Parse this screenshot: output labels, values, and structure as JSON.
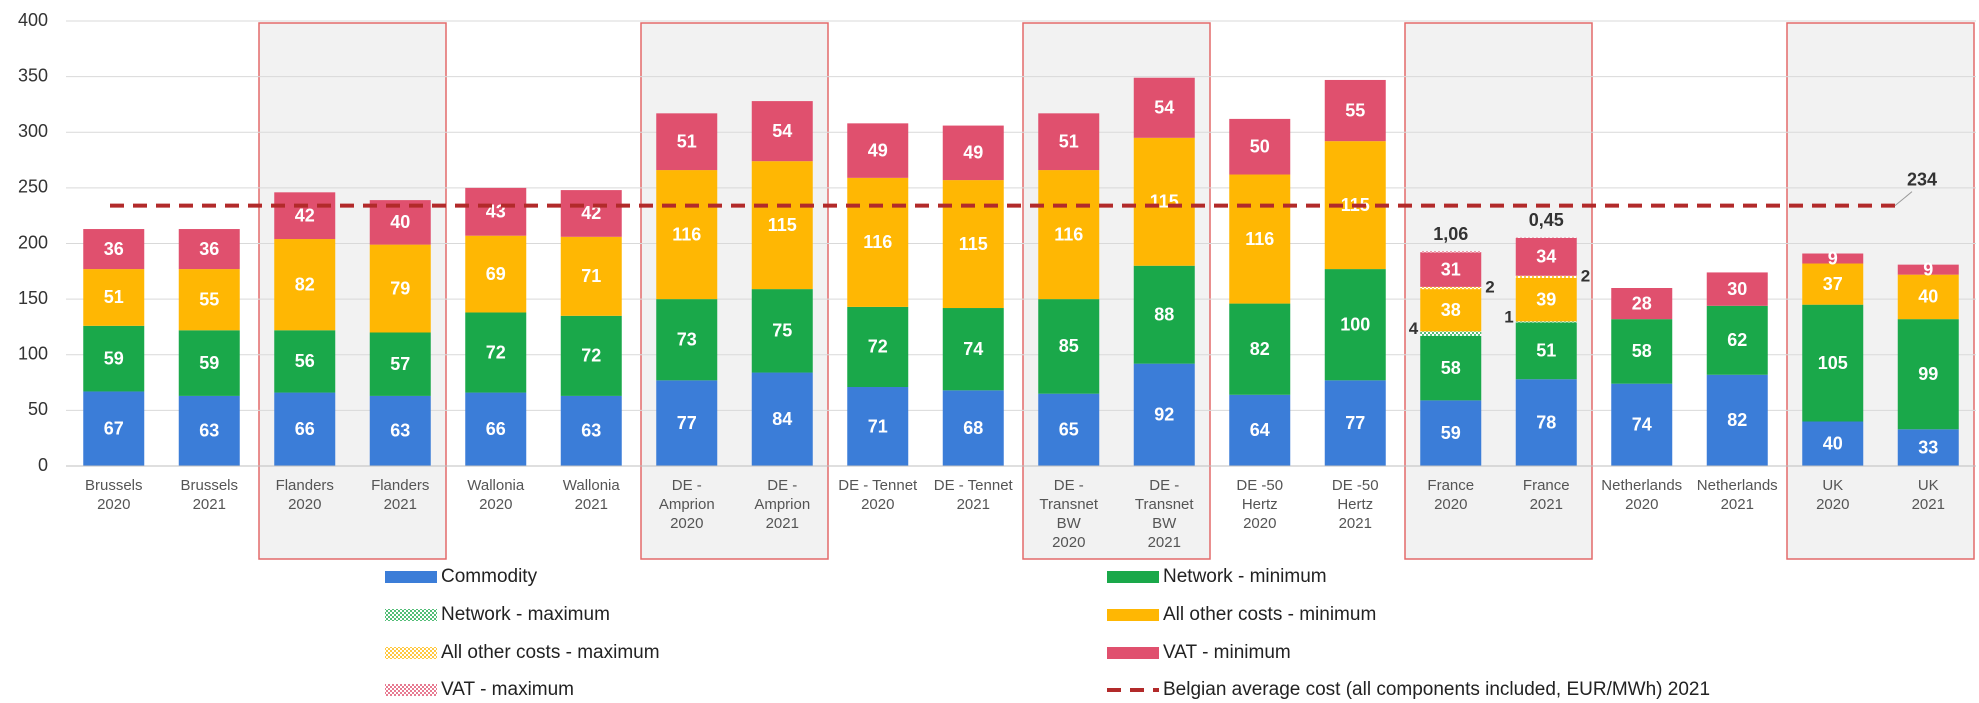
{
  "chart_data": {
    "type": "stacked_bar",
    "categories": [
      [
        "Brussels",
        "2020"
      ],
      [
        "Brussels",
        "2021"
      ],
      [
        "Flanders",
        "2020"
      ],
      [
        "Flanders",
        "2021"
      ],
      [
        "Wallonia",
        "2020"
      ],
      [
        "Wallonia",
        "2021"
      ],
      [
        "DE -",
        "Amprion",
        "2020"
      ],
      [
        "DE -",
        "Amprion",
        "2021"
      ],
      [
        "DE - Tennet",
        "2020"
      ],
      [
        "DE - Tennet",
        "2021"
      ],
      [
        "DE -",
        "Transnet",
        "BW",
        "2020"
      ],
      [
        "DE -",
        "Transnet",
        "BW",
        "2021"
      ],
      [
        "DE -50",
        "Hertz",
        "2020"
      ],
      [
        "DE -50",
        "Hertz",
        "2021"
      ],
      [
        "France",
        "2020"
      ],
      [
        "France",
        "2021"
      ],
      [
        "Netherlands",
        "2020"
      ],
      [
        "Netherlands",
        "2021"
      ],
      [
        "UK",
        "2020"
      ],
      [
        "UK",
        "2021"
      ]
    ],
    "series": [
      {
        "name": "Commodity",
        "color": "#3b7dd8",
        "hatch": false,
        "values": [
          67,
          63,
          66,
          63,
          66,
          63,
          77,
          84,
          71,
          68,
          65,
          92,
          64,
          77,
          59,
          78,
          74,
          82,
          40,
          33
        ]
      },
      {
        "name": "Network - minimum",
        "color": "#1aa84a",
        "hatch": false,
        "values": [
          59,
          59,
          56,
          57,
          72,
          72,
          73,
          75,
          72,
          74,
          85,
          88,
          82,
          100,
          58,
          51,
          58,
          62,
          105,
          99
        ]
      },
      {
        "name": "Network - maximum",
        "color": "#1aa84a",
        "hatch": true,
        "values": [
          null,
          null,
          null,
          null,
          null,
          null,
          null,
          null,
          null,
          null,
          null,
          null,
          null,
          null,
          4,
          1,
          null,
          null,
          null,
          null
        ]
      },
      {
        "name": "All other costs - minimum",
        "color": "#ffb703",
        "hatch": false,
        "values": [
          51,
          55,
          82,
          79,
          69,
          71,
          116,
          115,
          116,
          115,
          116,
          115,
          116,
          115,
          38,
          39,
          null,
          null,
          37,
          40
        ]
      },
      {
        "name": "All other costs - maximum",
        "color": "#ffb703",
        "hatch": true,
        "values": [
          null,
          null,
          null,
          null,
          null,
          null,
          null,
          null,
          null,
          null,
          null,
          null,
          null,
          null,
          2,
          2,
          null,
          null,
          null,
          null
        ]
      },
      {
        "name": "VAT - minimum",
        "color": "#e0506e",
        "hatch": false,
        "values": [
          36,
          36,
          42,
          40,
          43,
          42,
          51,
          54,
          49,
          49,
          51,
          54,
          50,
          55,
          31,
          34,
          28,
          30,
          9,
          9
        ]
      },
      {
        "name": "VAT - maximum",
        "color": "#e0506e",
        "hatch": true,
        "values": [
          null,
          null,
          null,
          null,
          null,
          null,
          null,
          null,
          null,
          null,
          null,
          null,
          null,
          null,
          1.06,
          0.45,
          null,
          null,
          null,
          null
        ],
        "value_labels": [
          null,
          null,
          null,
          null,
          null,
          null,
          null,
          null,
          null,
          null,
          null,
          null,
          null,
          null,
          "1,06",
          "0,45",
          null,
          null,
          null,
          null
        ]
      }
    ],
    "reference_line": {
      "name": "Belgian average cost (all components included, EUR/MWh) 2021",
      "value": 234,
      "label": "234",
      "color": "#b22a2a"
    },
    "highlight_groups": [
      [
        2,
        3
      ],
      [
        6,
        7
      ],
      [
        10,
        11
      ],
      [
        14,
        15
      ],
      [
        18,
        19
      ]
    ],
    "ylim": [
      0,
      400
    ],
    "yticks": [
      0,
      50,
      100,
      150,
      200,
      250,
      300,
      350,
      400
    ],
    "grid": true
  }
}
